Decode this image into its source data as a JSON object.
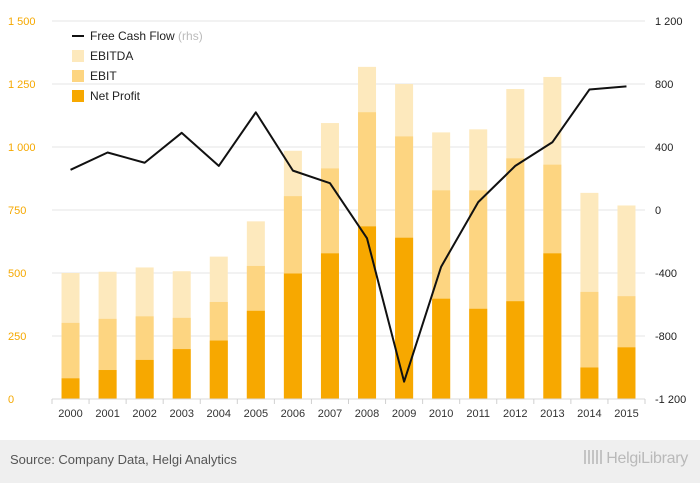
{
  "chart_data": {
    "type": "bar",
    "stacked_overlay": true,
    "categories": [
      "2000",
      "2001",
      "2002",
      "2003",
      "2004",
      "2005",
      "2006",
      "2007",
      "2008",
      "2009",
      "2010",
      "2011",
      "2012",
      "2013",
      "2014",
      "2015"
    ],
    "series": [
      {
        "name": "EBITDA",
        "axis": "left",
        "color": "#fde9bd",
        "values": [
          500,
          505,
          522,
          507,
          565,
          705,
          985,
          1095,
          1318,
          1250,
          1058,
          1070,
          1230,
          1278,
          818,
          768
        ]
      },
      {
        "name": "EBIT",
        "axis": "left",
        "color": "#fdd581",
        "values": [
          302,
          318,
          328,
          322,
          385,
          528,
          805,
          915,
          1138,
          1042,
          828,
          828,
          955,
          930,
          425,
          408
        ]
      },
      {
        "name": "Net Profit",
        "axis": "left",
        "color": "#f7a800",
        "values": [
          82,
          115,
          155,
          198,
          232,
          350,
          498,
          578,
          685,
          640,
          398,
          358,
          388,
          578,
          125,
          205
        ]
      },
      {
        "name": "Free Cash Flow",
        "sub": "(rhs)",
        "axis": "right",
        "type": "line",
        "color": "#111111",
        "values": [
          255,
          365,
          300,
          490,
          280,
          620,
          250,
          170,
          -180,
          -1090,
          -360,
          50,
          280,
          430,
          765,
          785
        ]
      }
    ],
    "y_left": {
      "min": 0,
      "max": 1500,
      "ticks": [
        0,
        250,
        500,
        750,
        1000,
        1250,
        1500
      ],
      "tick_labels": [
        "0",
        "250",
        "500",
        "750",
        "1 000",
        "1 250",
        "1 500"
      ]
    },
    "y_right": {
      "min": -1200,
      "max": 1200,
      "ticks": [
        -1200,
        -800,
        -400,
        0,
        400,
        800,
        1200
      ],
      "tick_labels": [
        "-1 200",
        "-800",
        "-400",
        "0",
        "400",
        "800",
        "1 200"
      ]
    },
    "grid": true,
    "legend_position": "top-left",
    "legend_order": [
      "Free Cash Flow",
      "EBITDA",
      "EBIT",
      "Net Profit"
    ],
    "title": "",
    "xlabel": "",
    "ylabel": ""
  },
  "footer": {
    "source": "Source: Company Data, Helgi Analytics",
    "brand": "HelgiLibrary"
  }
}
